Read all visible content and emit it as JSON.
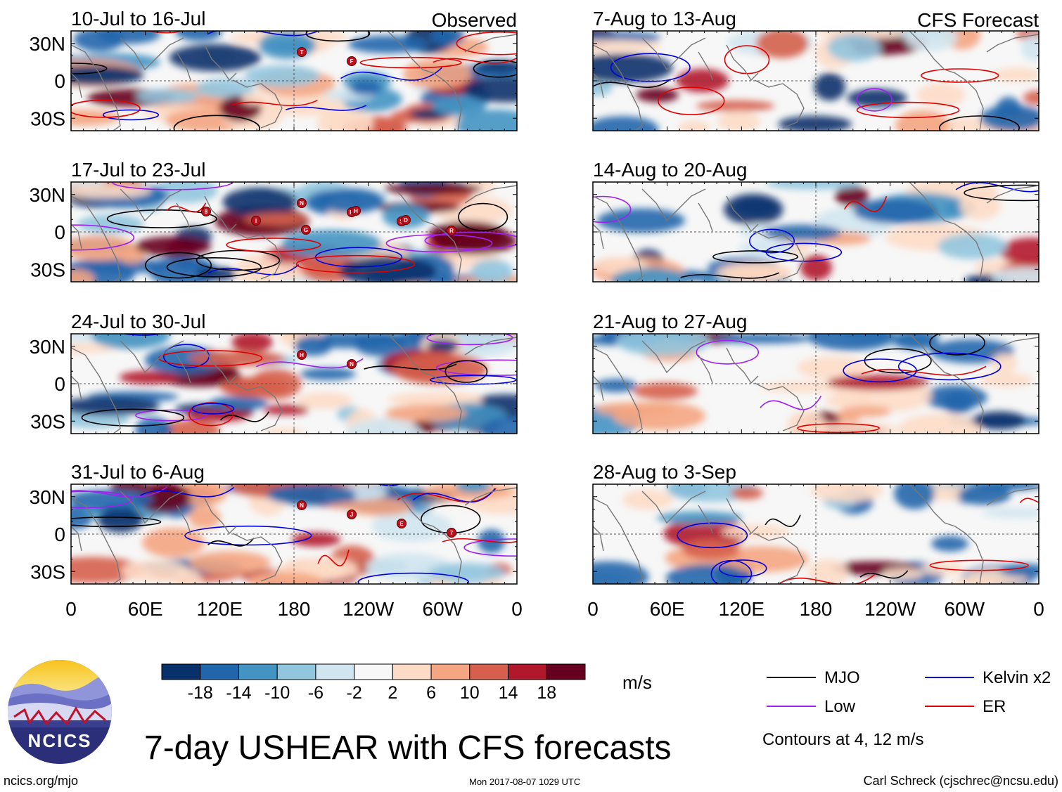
{
  "chart_data": {
    "type": "heatmap",
    "title": "7-day USHEAR with CFS forecasts",
    "variable": "USHEAR",
    "units": "m/s",
    "column_headers": {
      "observed": "Observed",
      "forecast": "CFS Forecast"
    },
    "lat_labels": [
      "30N",
      "0",
      "30S"
    ],
    "lat_values": [
      30,
      0,
      -30
    ],
    "lon_labels": [
      "0",
      "60E",
      "120E",
      "180",
      "120W",
      "60W",
      "0"
    ],
    "lon_values": [
      0,
      60,
      120,
      180,
      240,
      300,
      360
    ],
    "xlim": [
      0,
      360
    ],
    "ylim": [
      -40,
      40
    ],
    "panels": [
      {
        "id": "obs1",
        "period": "10-Jul to 16-Jul",
        "kind": "observed",
        "storms": [
          "T",
          "F"
        ]
      },
      {
        "id": "obs2",
        "period": "17-Jul to 23-Jul",
        "kind": "observed",
        "storms": [
          "N",
          "K",
          "S",
          "R",
          "8",
          "I",
          "G",
          "H",
          "D"
        ]
      },
      {
        "id": "obs3",
        "period": "24-Jul to 30-Jul",
        "kind": "observed",
        "storms": [
          "H",
          "N"
        ]
      },
      {
        "id": "obs4",
        "period": "31-Jul to 6-Aug",
        "kind": "observed",
        "storms": [
          "N",
          "J",
          "E",
          "7"
        ]
      },
      {
        "id": "fc1",
        "period": "7-Aug to 13-Aug",
        "kind": "forecast",
        "storms": []
      },
      {
        "id": "fc2",
        "period": "14-Aug to 20-Aug",
        "kind": "forecast",
        "storms": []
      },
      {
        "id": "fc3",
        "period": "21-Aug to 27-Aug",
        "kind": "forecast",
        "storms": []
      },
      {
        "id": "fc4",
        "period": "28-Aug to 3-Sep",
        "kind": "forecast",
        "storms": []
      }
    ],
    "colorbar": {
      "ticks": [
        "-18",
        "-14",
        "-10",
        "-6",
        "-2",
        "2",
        "6",
        "10",
        "14",
        "18"
      ],
      "colors": [
        "#08306b",
        "#2166ac",
        "#4393c3",
        "#92c5de",
        "#d1e5f0",
        "#f7f7f7",
        "#fddbc7",
        "#f4a582",
        "#d6604d",
        "#b2182b",
        "#67001f"
      ]
    },
    "legend": [
      {
        "label": "MJO",
        "color": "#000000"
      },
      {
        "label": "Kelvin x2",
        "color": "#0000dd"
      },
      {
        "label": "Low",
        "color": "#a020f0"
      },
      {
        "label": "ER",
        "color": "#e00000"
      }
    ],
    "contour_note": "Contours at 4, 12 m/s"
  },
  "footer": {
    "logo_text": "NCICS",
    "url": "ncics.org/mjo",
    "timestamp": "Mon 2017-08-07 1029 UTC",
    "author": "Carl Schreck (cjschrec@ncsu.edu)"
  }
}
